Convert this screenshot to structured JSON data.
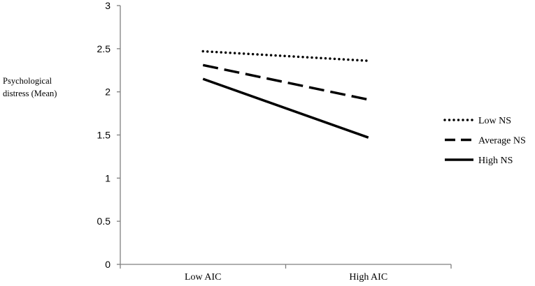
{
  "chart_data": {
    "type": "line",
    "categories": [
      "Low AIC",
      "High AIC"
    ],
    "series": [
      {
        "name": "Low NS",
        "values": [
          2.47,
          2.36
        ],
        "style": "dotted",
        "color": "#000000"
      },
      {
        "name": "Average NS",
        "values": [
          2.31,
          1.91
        ],
        "style": "dashed",
        "color": "#000000"
      },
      {
        "name": "High NS",
        "values": [
          2.15,
          1.47
        ],
        "style": "solid",
        "color": "#000000"
      }
    ],
    "ylabel_lines": [
      "Psychological",
      "distress (Mean)"
    ],
    "ylim": [
      0,
      3
    ],
    "yticks": [
      "0",
      "0.5",
      "1",
      "1.5",
      "2",
      "2.5",
      "3"
    ],
    "legend_position": "right",
    "grid": false
  }
}
